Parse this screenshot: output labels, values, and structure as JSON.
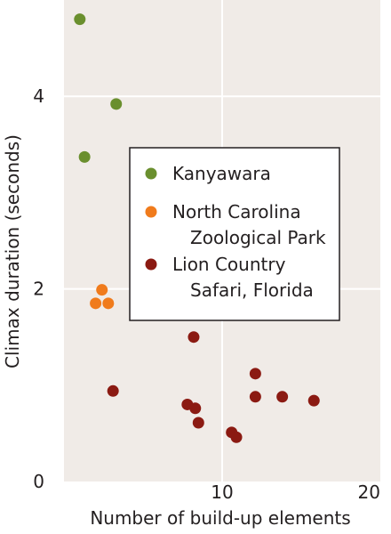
{
  "chart_data": {
    "type": "scatter",
    "xlabel": "Number of build-up elements",
    "ylabel": "Climax duration (seconds)",
    "xlim": [
      0,
      20
    ],
    "ylim": [
      0,
      5
    ],
    "x_ticks": [
      10,
      20
    ],
    "y_ticks": [
      0,
      2,
      4
    ],
    "grid": true,
    "background": "#f0ebe7",
    "gridline_color": "#ffffff",
    "legend_placement": "center-right",
    "series": [
      {
        "name": "Kanyawara",
        "label_lines": [
          "Kanyawara"
        ],
        "color": "#6a8f2e",
        "points": [
          {
            "x": 1.0,
            "y": 4.8
          },
          {
            "x": 1.3,
            "y": 3.37
          },
          {
            "x": 3.3,
            "y": 3.92
          }
        ]
      },
      {
        "name": "North Carolina Zoological Park",
        "label_lines": [
          "North Carolina",
          "Zoological Park"
        ],
        "color": "#f07b1c",
        "points": [
          {
            "x": 2.0,
            "y": 1.85
          },
          {
            "x": 2.4,
            "y": 1.99
          },
          {
            "x": 2.8,
            "y": 1.85
          }
        ]
      },
      {
        "name": "Lion Country Safari, Florida",
        "label_lines": [
          "Lion Country",
          "Safari, Florida"
        ],
        "color": "#8b1a12",
        "points": [
          {
            "x": 3.1,
            "y": 0.94
          },
          {
            "x": 7.8,
            "y": 0.8
          },
          {
            "x": 8.2,
            "y": 1.5
          },
          {
            "x": 8.3,
            "y": 0.76
          },
          {
            "x": 8.5,
            "y": 0.61
          },
          {
            "x": 10.6,
            "y": 0.51
          },
          {
            "x": 10.9,
            "y": 0.46
          },
          {
            "x": 12.1,
            "y": 1.12
          },
          {
            "x": 12.1,
            "y": 0.88
          },
          {
            "x": 13.8,
            "y": 0.88
          },
          {
            "x": 15.8,
            "y": 0.84
          }
        ]
      }
    ]
  }
}
